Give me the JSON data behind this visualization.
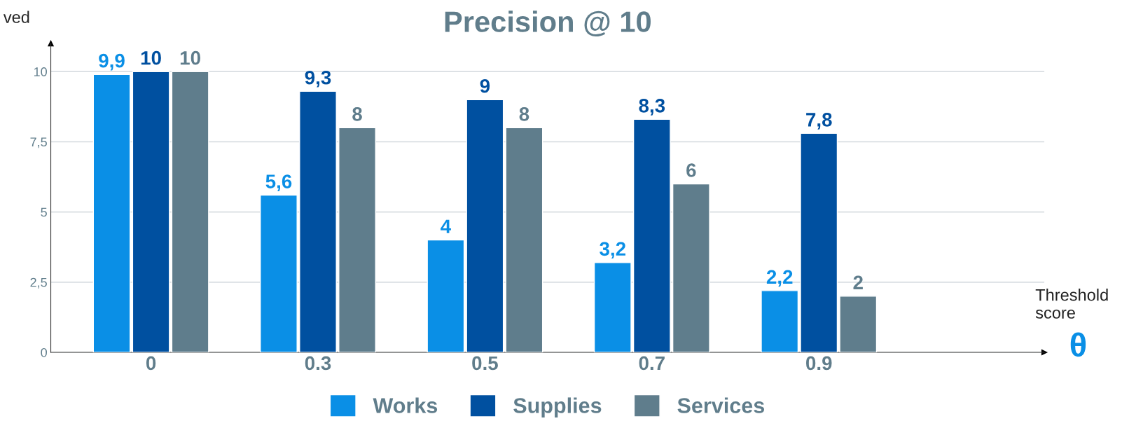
{
  "chart_data": {
    "type": "bar",
    "title": "Precision @ 10",
    "ylabel": "ved",
    "annotations": [
      "Threshold score",
      "θ"
    ],
    "categories": [
      "0",
      "0.3",
      "0.5",
      "0.7",
      "0.9"
    ],
    "series": [
      {
        "name": "Works",
        "color": "#0a8fe6",
        "values": [
          9.9,
          5.6,
          4,
          3.2,
          2.2
        ],
        "value_labels": [
          "9,9",
          "5,6",
          "4",
          "3,2",
          "2,2"
        ]
      },
      {
        "name": "Supplies",
        "color": "#0050a0",
        "values": [
          10,
          9.3,
          9,
          8.3,
          7.8
        ],
        "value_labels": [
          "10",
          "9,3",
          "9",
          "8,3",
          "7,8"
        ]
      },
      {
        "name": "Services",
        "color": "#5f7d8c",
        "values": [
          10,
          8,
          8,
          6,
          2
        ],
        "value_labels": [
          "10",
          "8",
          "8",
          "6",
          "2"
        ]
      }
    ],
    "ylim": [
      0,
      11
    ],
    "yticks": [
      0,
      {
        "value": 2.5,
        "label": "2,5"
      },
      5,
      {
        "value": 7.5,
        "label": "7,5"
      },
      10
    ],
    "grid": "y",
    "legend": "bottom"
  }
}
